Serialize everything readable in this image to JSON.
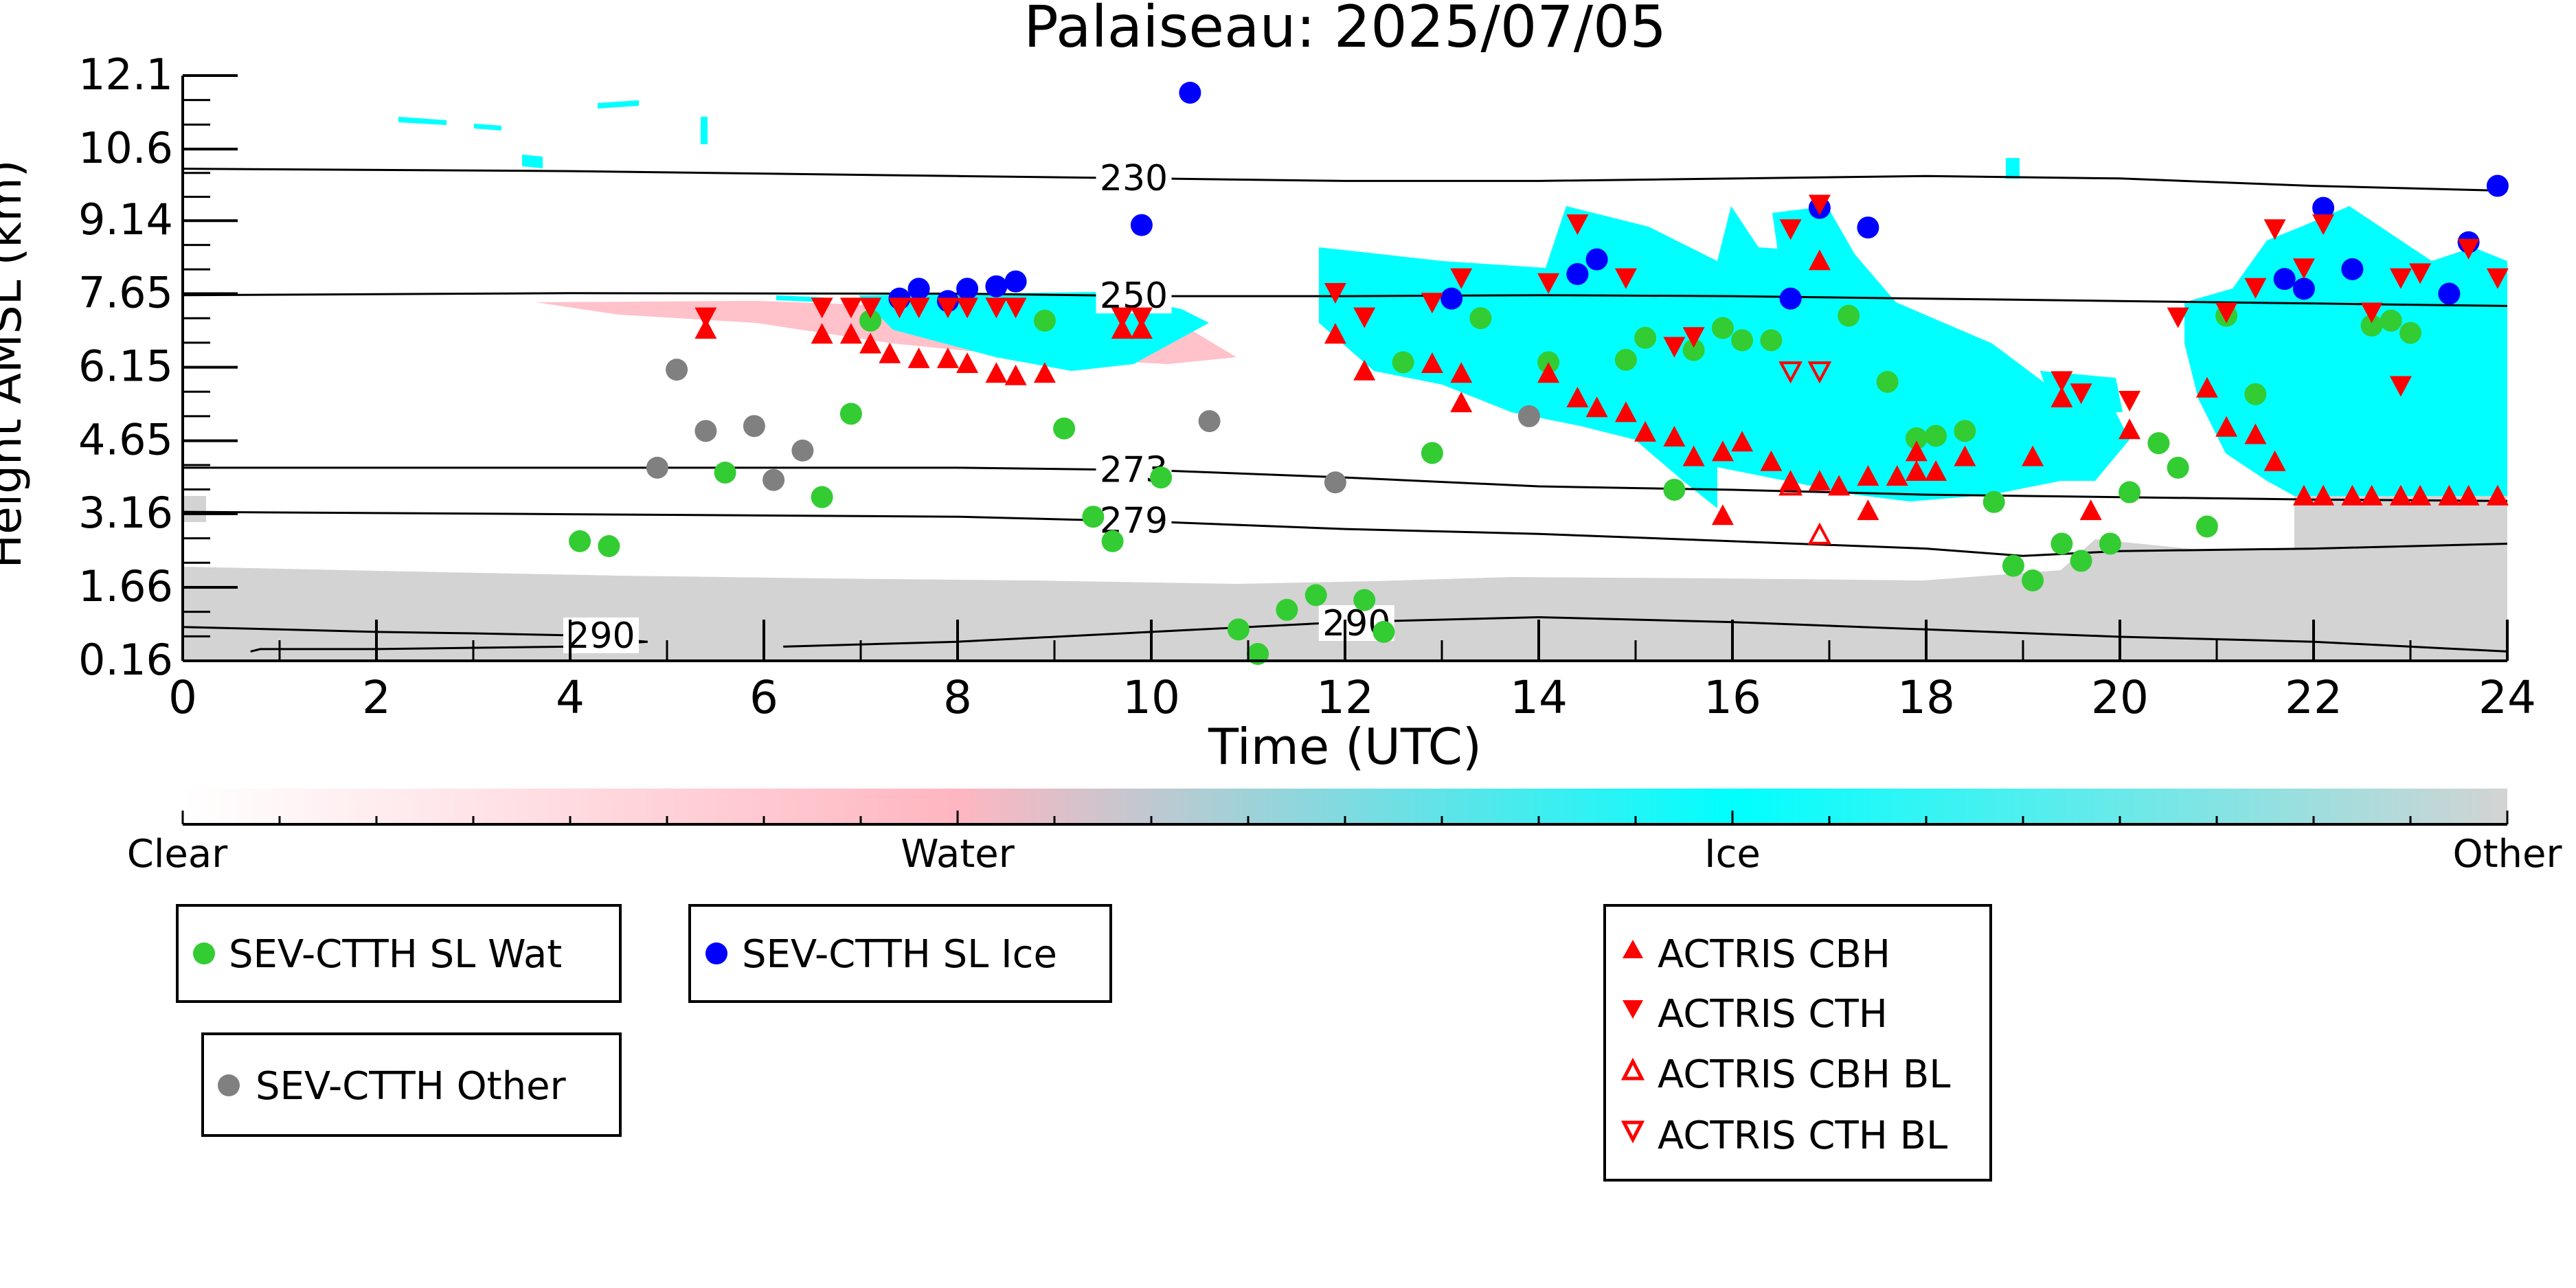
{
  "chart_data": {
    "type": "scatter",
    "title": "Palaiseau: 2025/07/05",
    "xlabel": "Time (UTC)",
    "ylabel": "Height AMSL (km)",
    "xlim": [
      0,
      24
    ],
    "ylim": [
      0.16,
      12.1
    ],
    "xticks": [
      "0",
      "2",
      "4",
      "6",
      "8",
      "10",
      "12",
      "14",
      "16",
      "18",
      "20",
      "22",
      "24"
    ],
    "yticks": [
      "0.16",
      "1.66",
      "3.16",
      "4.65",
      "6.15",
      "7.65",
      "9.14",
      "10.6",
      "12.1"
    ],
    "grid": false,
    "colorbar": {
      "labels": [
        "Clear",
        "Water",
        "Ice",
        "Other"
      ],
      "colors": [
        "#ffffff",
        "#ffb6c1",
        "#00ffff",
        "#d3d3d3"
      ]
    },
    "cloud_mask": {
      "water_color": "#ffb6c1",
      "ice_color": "#00ffff",
      "other_color": "#d3d3d3"
    },
    "contours": [
      {
        "label": "230",
        "label_x": 9.5,
        "points": [
          [
            0,
            10.2
          ],
          [
            4,
            10.15
          ],
          [
            8,
            10.05
          ],
          [
            10,
            10.0
          ],
          [
            12,
            9.95
          ],
          [
            14,
            9.95
          ],
          [
            18,
            10.05
          ],
          [
            20,
            10.0
          ],
          [
            22,
            9.85
          ],
          [
            24,
            9.75
          ]
        ]
      },
      {
        "label": "250",
        "label_x": 9.5,
        "points": [
          [
            0,
            7.62
          ],
          [
            4,
            7.66
          ],
          [
            8,
            7.65
          ],
          [
            10,
            7.6
          ],
          [
            12,
            7.6
          ],
          [
            14,
            7.62
          ],
          [
            16,
            7.6
          ],
          [
            18,
            7.55
          ],
          [
            20,
            7.5
          ],
          [
            22,
            7.45
          ],
          [
            24,
            7.4
          ]
        ]
      },
      {
        "label": "273",
        "label_x": 9.5,
        "points": [
          [
            0,
            4.1
          ],
          [
            4,
            4.1
          ],
          [
            8,
            4.1
          ],
          [
            10,
            4.05
          ],
          [
            12,
            3.9
          ],
          [
            14,
            3.72
          ],
          [
            16,
            3.65
          ],
          [
            18,
            3.55
          ],
          [
            20,
            3.5
          ],
          [
            22,
            3.45
          ],
          [
            24,
            3.42
          ]
        ]
      },
      {
        "label": "279",
        "label_x": 9.5,
        "points": [
          [
            0,
            3.2
          ],
          [
            4,
            3.15
          ],
          [
            8,
            3.1
          ],
          [
            10,
            3.0
          ],
          [
            12,
            2.85
          ],
          [
            14,
            2.75
          ],
          [
            16,
            2.6
          ],
          [
            18,
            2.45
          ],
          [
            19,
            2.3
          ],
          [
            20,
            2.4
          ],
          [
            22,
            2.45
          ],
          [
            24,
            2.55
          ]
        ]
      },
      {
        "label": "290",
        "label_x": 4.0,
        "points": [
          [
            0,
            0.85
          ],
          [
            1,
            0.8
          ],
          [
            2,
            0.75
          ],
          [
            3,
            0.72
          ],
          [
            4,
            0.68
          ],
          [
            4.8,
            0.55
          ],
          [
            4.0,
            0.45
          ],
          [
            2,
            0.4
          ],
          [
            0.8,
            0.4
          ],
          [
            0.7,
            0.35
          ]
        ]
      },
      {
        "label": "290",
        "label_x": 11.8,
        "points": [
          [
            6.2,
            0.45
          ],
          [
            8,
            0.55
          ],
          [
            10,
            0.75
          ],
          [
            12,
            0.95
          ],
          [
            14,
            1.05
          ],
          [
            16,
            0.95
          ],
          [
            18,
            0.8
          ],
          [
            20,
            0.65
          ],
          [
            22,
            0.55
          ],
          [
            23.5,
            0.4
          ],
          [
            24,
            0.35
          ]
        ]
      }
    ],
    "series": [
      {
        "name": "SEV-CTTH SL Wat",
        "color": "#33cc33",
        "marker": "circle",
        "points": [
          [
            4.1,
            2.6
          ],
          [
            4.4,
            2.5
          ],
          [
            5.6,
            4.0
          ],
          [
            6.6,
            3.5
          ],
          [
            6.9,
            5.2
          ],
          [
            7.1,
            7.1
          ],
          [
            8.9,
            7.1
          ],
          [
            9.1,
            4.9
          ],
          [
            9.4,
            3.1
          ],
          [
            9.6,
            2.6
          ],
          [
            10.1,
            3.9
          ],
          [
            10.9,
            0.8
          ],
          [
            11.1,
            0.3
          ],
          [
            11.4,
            1.2
          ],
          [
            11.7,
            1.5
          ],
          [
            12.2,
            1.4
          ],
          [
            12.4,
            0.75
          ],
          [
            12.6,
            6.25
          ],
          [
            12.9,
            4.4
          ],
          [
            13.4,
            7.15
          ],
          [
            14.1,
            6.25
          ],
          [
            14.9,
            6.3
          ],
          [
            15.1,
            6.75
          ],
          [
            15.4,
            3.65
          ],
          [
            15.6,
            6.5
          ],
          [
            15.9,
            6.95
          ],
          [
            16.1,
            6.7
          ],
          [
            16.4,
            6.7
          ],
          [
            17.2,
            7.2
          ],
          [
            17.6,
            5.85
          ],
          [
            17.9,
            4.7
          ],
          [
            18.1,
            4.75
          ],
          [
            18.4,
            4.85
          ],
          [
            18.7,
            3.4
          ],
          [
            18.9,
            2.1
          ],
          [
            19.1,
            1.8
          ],
          [
            19.4,
            2.55
          ],
          [
            19.6,
            2.2
          ],
          [
            19.9,
            2.55
          ],
          [
            20.1,
            3.6
          ],
          [
            20.4,
            4.6
          ],
          [
            20.6,
            4.1
          ],
          [
            20.9,
            2.9
          ],
          [
            21.1,
            7.2
          ],
          [
            21.4,
            5.6
          ],
          [
            22.6,
            7.0
          ],
          [
            22.8,
            7.1
          ],
          [
            23.0,
            6.85
          ]
        ]
      },
      {
        "name": "SEV-CTTH SL Ice",
        "color": "#0000ff",
        "marker": "circle",
        "points": [
          [
            7.4,
            7.55
          ],
          [
            7.6,
            7.75
          ],
          [
            7.9,
            7.5
          ],
          [
            8.1,
            7.75
          ],
          [
            8.4,
            7.8
          ],
          [
            8.6,
            7.9
          ],
          [
            9.9,
            9.05
          ],
          [
            10.4,
            11.75
          ],
          [
            13.1,
            7.55
          ],
          [
            14.4,
            8.05
          ],
          [
            14.6,
            8.35
          ],
          [
            16.6,
            7.55
          ],
          [
            16.9,
            9.4
          ],
          [
            17.4,
            9.0
          ],
          [
            21.7,
            7.95
          ],
          [
            21.9,
            7.75
          ],
          [
            22.1,
            9.4
          ],
          [
            22.4,
            8.15
          ],
          [
            23.4,
            7.65
          ],
          [
            23.6,
            8.7
          ],
          [
            23.9,
            9.85
          ]
        ]
      },
      {
        "name": "SEV-CTTH Other",
        "color": "#808080",
        "marker": "circle",
        "points": [
          [
            4.9,
            4.1
          ],
          [
            5.1,
            6.1
          ],
          [
            5.4,
            4.85
          ],
          [
            5.9,
            4.95
          ],
          [
            6.1,
            3.85
          ],
          [
            6.4,
            4.45
          ],
          [
            10.6,
            5.05
          ],
          [
            11.9,
            3.8
          ],
          [
            13.9,
            5.15
          ]
        ]
      }
    ],
    "markers": [
      {
        "name": "ACTRIS CBH",
        "color": "#ff0000",
        "marker": "triangle-up",
        "points": [
          [
            5.4,
            6.9
          ],
          [
            6.6,
            6.8
          ],
          [
            6.9,
            6.8
          ],
          [
            7.1,
            6.6
          ],
          [
            7.3,
            6.4
          ],
          [
            7.6,
            6.3
          ],
          [
            7.9,
            6.3
          ],
          [
            8.1,
            6.2
          ],
          [
            8.4,
            6.0
          ],
          [
            8.6,
            5.95
          ],
          [
            8.9,
            6.0
          ],
          [
            9.7,
            6.9
          ],
          [
            9.9,
            6.9
          ],
          [
            11.9,
            6.8
          ],
          [
            12.2,
            6.05
          ],
          [
            12.9,
            6.2
          ],
          [
            13.2,
            6.0
          ],
          [
            13.2,
            5.4
          ],
          [
            14.1,
            6.0
          ],
          [
            14.4,
            5.5
          ],
          [
            14.6,
            5.3
          ],
          [
            14.9,
            5.2
          ],
          [
            15.1,
            4.8
          ],
          [
            15.4,
            4.7
          ],
          [
            15.6,
            4.3
          ],
          [
            15.9,
            4.4
          ],
          [
            15.9,
            3.1
          ],
          [
            16.1,
            4.6
          ],
          [
            16.4,
            4.2
          ],
          [
            16.6,
            3.8
          ],
          [
            16.9,
            3.8
          ],
          [
            16.9,
            8.3
          ],
          [
            17.1,
            3.7
          ],
          [
            17.4,
            3.9
          ],
          [
            17.4,
            3.2
          ],
          [
            17.7,
            3.9
          ],
          [
            17.9,
            4.0
          ],
          [
            17.9,
            4.4
          ],
          [
            18.1,
            4.0
          ],
          [
            18.4,
            4.3
          ],
          [
            19.1,
            4.3
          ],
          [
            19.4,
            5.5
          ],
          [
            19.7,
            3.2
          ],
          [
            20.1,
            4.85
          ],
          [
            20.9,
            5.7
          ],
          [
            21.1,
            4.9
          ],
          [
            21.4,
            4.75
          ],
          [
            21.6,
            4.2
          ],
          [
            21.9,
            3.5
          ],
          [
            22.1,
            3.5
          ],
          [
            22.4,
            3.5
          ],
          [
            22.6,
            3.5
          ],
          [
            22.9,
            3.5
          ],
          [
            23.1,
            3.5
          ],
          [
            23.4,
            3.5
          ],
          [
            23.6,
            3.5
          ],
          [
            23.9,
            3.5
          ]
        ]
      },
      {
        "name": "ACTRIS CTH",
        "color": "#ff0000",
        "marker": "triangle-down",
        "points": [
          [
            5.4,
            7.2
          ],
          [
            6.6,
            7.4
          ],
          [
            6.9,
            7.4
          ],
          [
            7.1,
            7.4
          ],
          [
            7.4,
            7.4
          ],
          [
            7.6,
            7.4
          ],
          [
            7.9,
            7.4
          ],
          [
            8.1,
            7.4
          ],
          [
            8.4,
            7.4
          ],
          [
            8.6,
            7.4
          ],
          [
            9.7,
            7.2
          ],
          [
            9.9,
            7.2
          ],
          [
            11.9,
            7.7
          ],
          [
            12.2,
            7.2
          ],
          [
            12.9,
            7.5
          ],
          [
            13.2,
            8.0
          ],
          [
            14.1,
            7.9
          ],
          [
            14.4,
            9.1
          ],
          [
            14.9,
            8.0
          ],
          [
            15.4,
            6.6
          ],
          [
            15.6,
            6.8
          ],
          [
            16.6,
            9.0
          ],
          [
            16.9,
            9.5
          ],
          [
            21.1,
            7.3
          ],
          [
            21.4,
            7.8
          ],
          [
            21.6,
            9.0
          ],
          [
            21.9,
            8.2
          ],
          [
            22.1,
            9.1
          ],
          [
            22.6,
            7.3
          ],
          [
            22.9,
            8.0
          ],
          [
            23.1,
            8.1
          ],
          [
            23.6,
            8.6
          ],
          [
            23.9,
            8.0
          ],
          [
            19.4,
            5.9
          ],
          [
            19.6,
            5.65
          ],
          [
            20.1,
            5.5
          ],
          [
            20.6,
            7.2
          ],
          [
            22.9,
            5.8
          ]
        ]
      },
      {
        "name": "ACTRIS CBH BL",
        "color": "#ff0000",
        "marker": "triangle-up-open",
        "points": [
          [
            16.6,
            3.7
          ],
          [
            16.9,
            2.7
          ]
        ]
      },
      {
        "name": "ACTRIS CTH BL",
        "color": "#ff0000",
        "marker": "triangle-down-open",
        "points": [
          [
            16.6,
            6.1
          ],
          [
            16.9,
            6.1
          ]
        ]
      }
    ]
  }
}
